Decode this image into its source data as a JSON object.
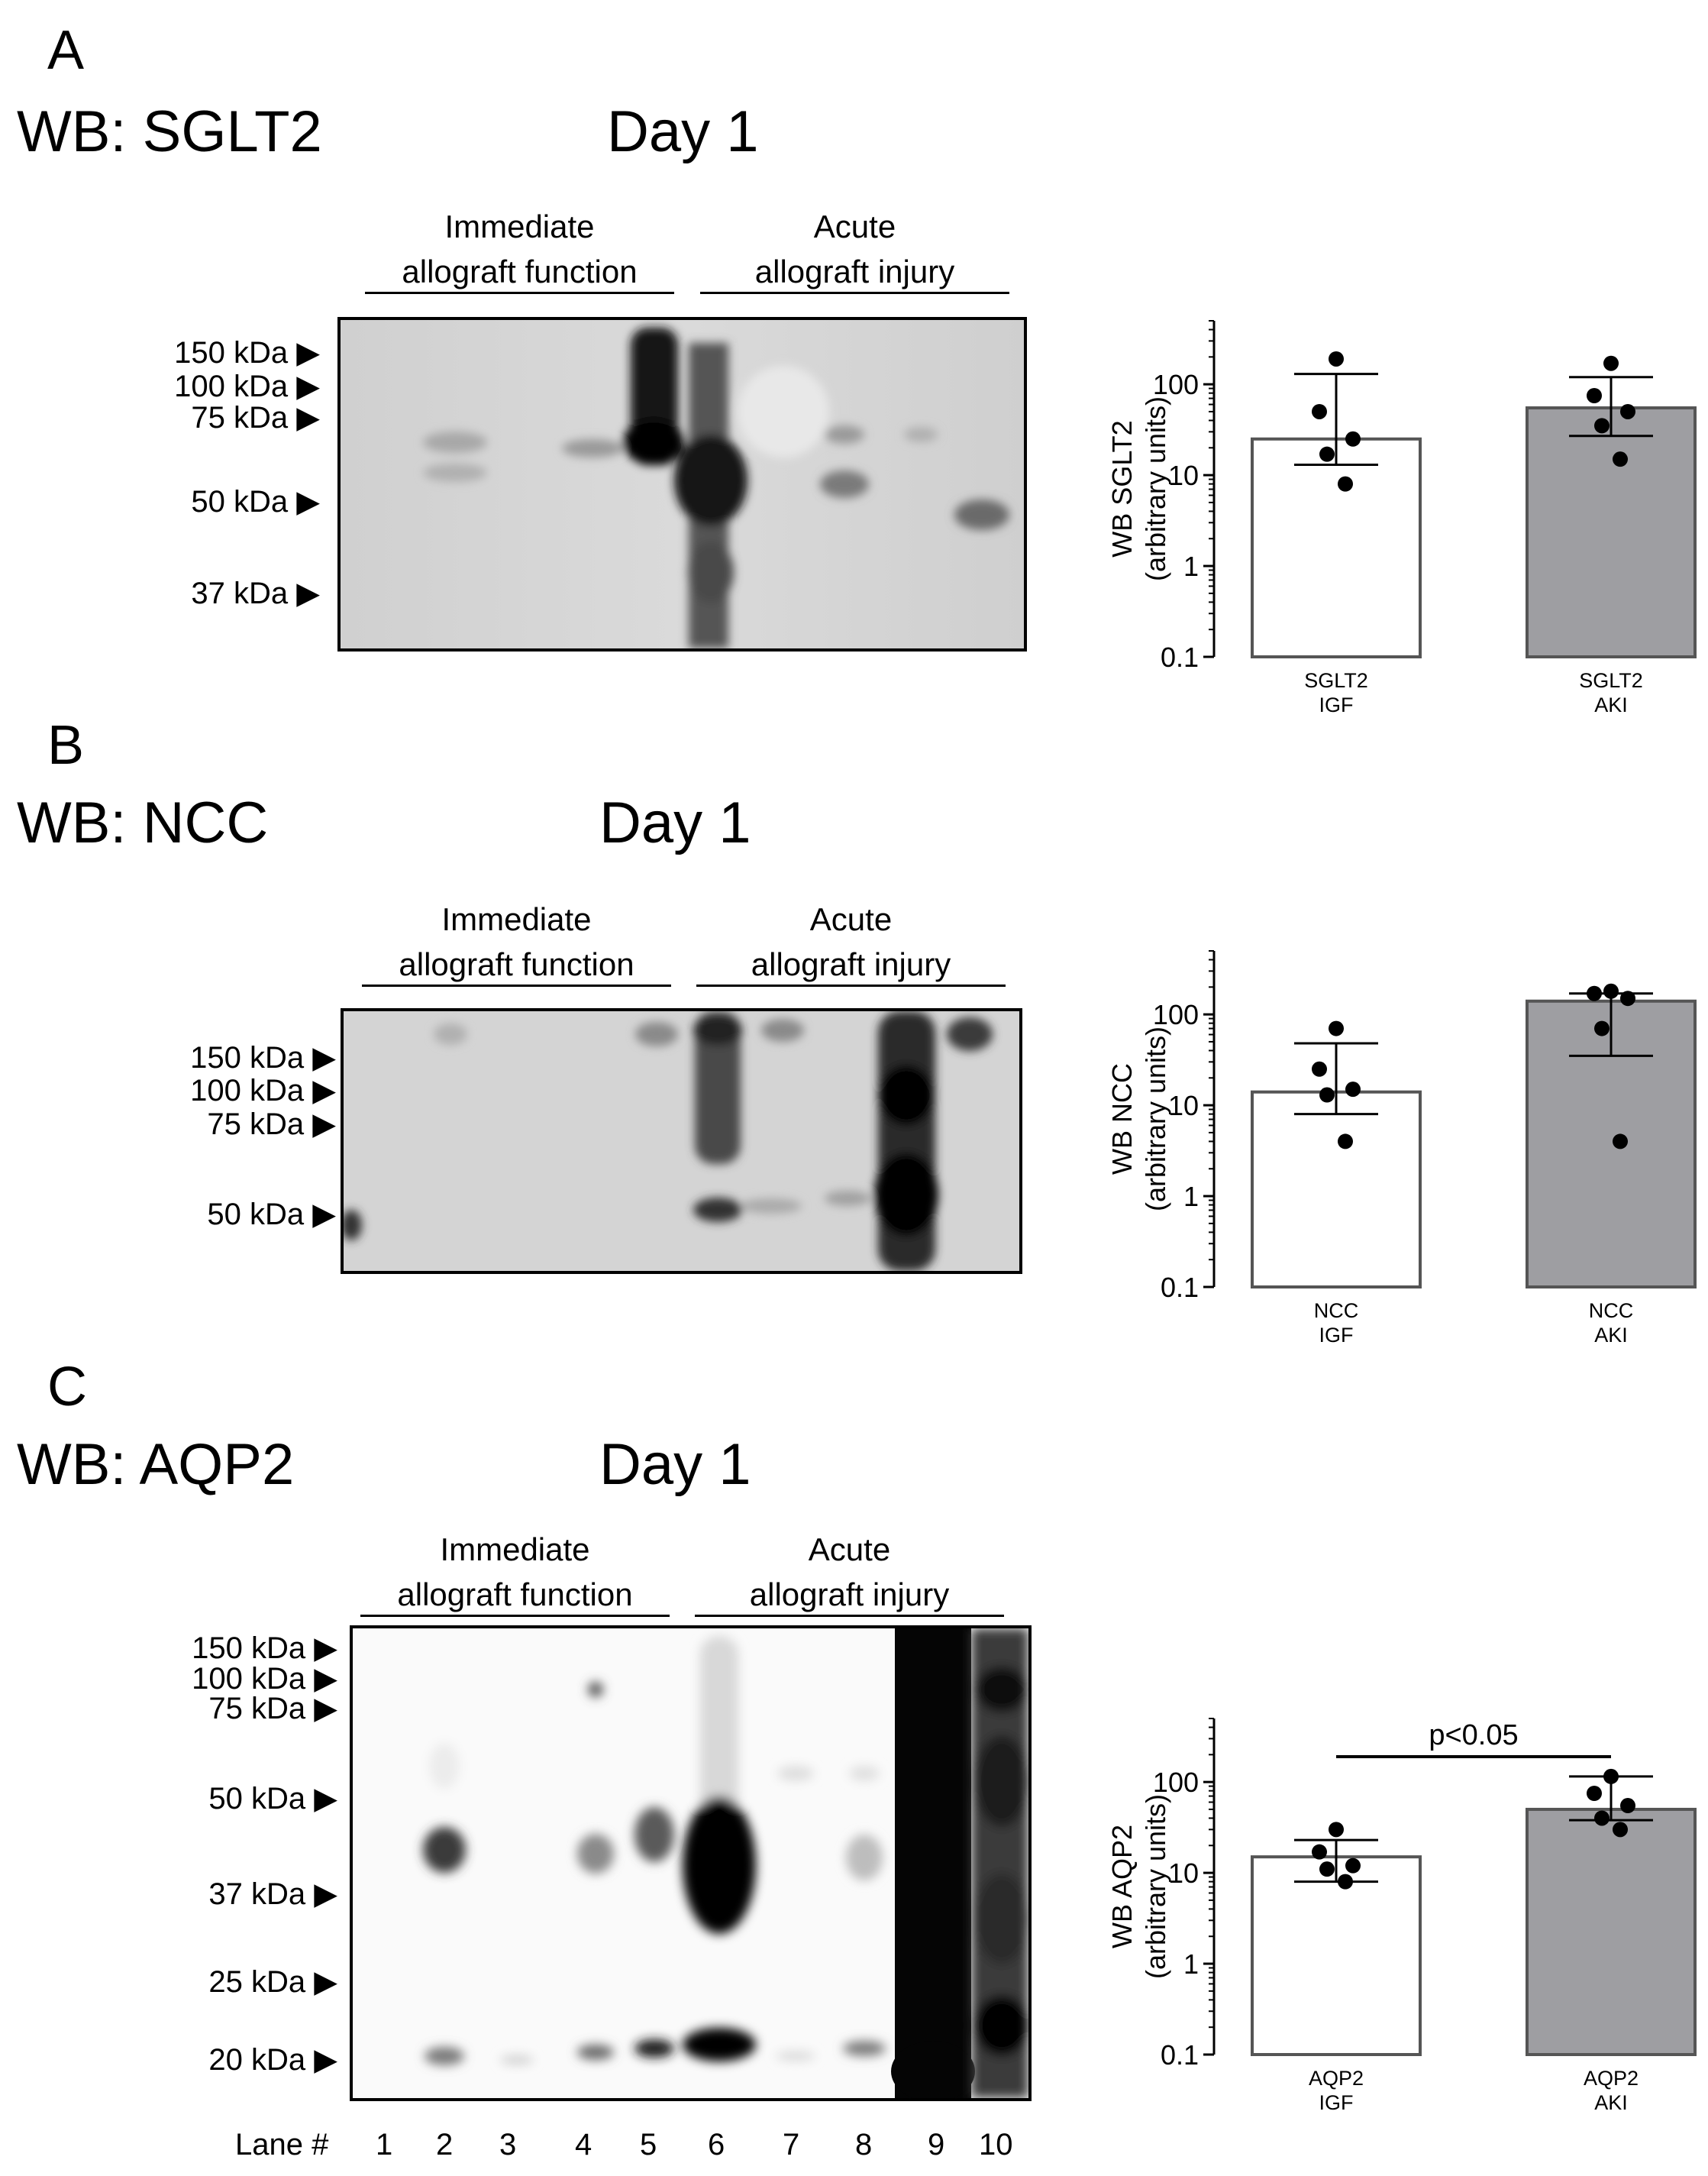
{
  "panels": [
    {
      "letter": "A",
      "wb_title": "WB: SGLT2",
      "day": "Day 1",
      "group1": {
        "line1": "Immediate",
        "line2": "allograft function"
      },
      "group2": {
        "line1": "Acute",
        "line2": "allograft  injury"
      },
      "markers": [
        "150 kDa",
        "100 kDa",
        "75 kDa",
        "50 kDa",
        "37 kDa"
      ]
    },
    {
      "letter": "B",
      "wb_title": "WB: NCC",
      "day": "Day 1",
      "group1": {
        "line1": "Immediate",
        "line2": "allograft function"
      },
      "group2": {
        "line1": "Acute",
        "line2": "allograft  injury"
      },
      "markers": [
        "150 kDa",
        "100 kDa",
        "75 kDa",
        "50 kDa"
      ]
    },
    {
      "letter": "C",
      "wb_title": "WB: AQP2",
      "day": "Day 1",
      "group1": {
        "line1": "Immediate",
        "line2": "allograft function"
      },
      "group2": {
        "line1": "Acute",
        "line2": "allograft  injury"
      },
      "markers": [
        "150 kDa",
        "100 kDa",
        "75 kDa",
        "50 kDa",
        "37 kDa",
        "25 kDa",
        "20 kDa"
      ],
      "lane_label": "Lane #",
      "lanes": [
        "1",
        "2",
        "3",
        "4",
        "5",
        "6",
        "7",
        "8",
        "9",
        "10"
      ]
    }
  ],
  "colors": {
    "igf_fill": "#ffffff",
    "aki_fill": "#9e9ea2",
    "axis": "#000000"
  },
  "chart_data": [
    {
      "type": "bar",
      "y_scale": "log",
      "ylim": [
        0.1,
        500
      ],
      "ylabel": "WB SGLT2",
      "ylabel2": "(arbitrary units)",
      "yticks": [
        "0.1",
        "1",
        "10",
        "100"
      ],
      "categories": [
        [
          "SGLT2",
          "IGF"
        ],
        [
          "SGLT2",
          "AKI"
        ]
      ],
      "values": [
        25,
        55
      ],
      "error_low": [
        13,
        27
      ],
      "error_high": [
        130,
        120
      ],
      "points": [
        [
          190,
          50,
          25,
          17,
          8
        ],
        [
          170,
          75,
          50,
          35,
          15
        ]
      ],
      "annotation": ""
    },
    {
      "type": "bar",
      "y_scale": "log",
      "ylim": [
        0.1,
        500
      ],
      "ylabel": "WB NCC",
      "ylabel2": "(arbitrary units)",
      "yticks": [
        "0.1",
        "1",
        "10",
        "100"
      ],
      "categories": [
        [
          "NCC",
          "IGF"
        ],
        [
          "NCC",
          "AKI"
        ]
      ],
      "values": [
        14,
        140
      ],
      "error_low": [
        8,
        35
      ],
      "error_high": [
        48,
        170
      ],
      "points": [
        [
          70,
          25,
          15,
          13,
          4
        ],
        [
          180,
          170,
          150,
          70,
          4
        ]
      ],
      "annotation": ""
    },
    {
      "type": "bar",
      "y_scale": "log",
      "ylim": [
        0.1,
        500
      ],
      "ylabel": "WB AQP2",
      "ylabel2": "(arbitrary units)",
      "yticks": [
        "0.1",
        "1",
        "10",
        "100"
      ],
      "categories": [
        [
          "AQP2",
          "IGF"
        ],
        [
          "AQP2",
          "AKI"
        ]
      ],
      "values": [
        15,
        50
      ],
      "error_low": [
        8,
        38
      ],
      "error_high": [
        23,
        115
      ],
      "points": [
        [
          30,
          17,
          12,
          11,
          8
        ],
        [
          115,
          75,
          55,
          40,
          30
        ]
      ],
      "annotation": "p<0.05"
    }
  ]
}
